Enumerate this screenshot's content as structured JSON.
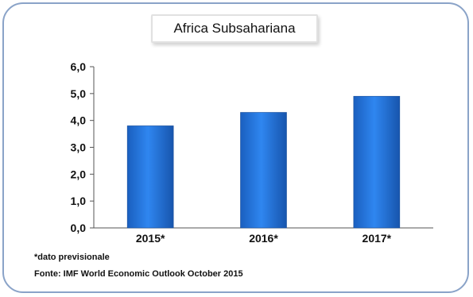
{
  "chart_data": {
    "type": "bar",
    "title": "Africa Subsahariana",
    "categories": [
      "2015*",
      "2016*",
      "2017*"
    ],
    "values": [
      3.8,
      4.3,
      4.9
    ],
    "ylim": [
      0,
      6
    ],
    "yticks": [
      "0,0",
      "1,0",
      "2,0",
      "3,0",
      "4,0",
      "5,0",
      "6,0"
    ],
    "grid": false,
    "legend": "none",
    "bar_color": "#1f6fd1",
    "xlabel": "",
    "ylabel": ""
  },
  "footnote": "*dato previsionale",
  "source": "Fonte: IMF World Economic Outlook October 2015"
}
